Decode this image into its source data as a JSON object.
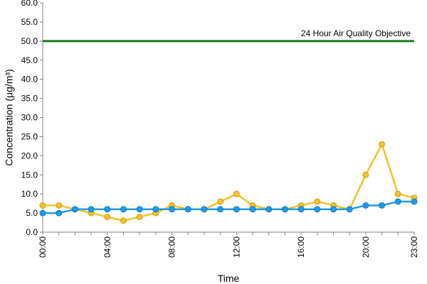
{
  "chart_data": {
    "type": "line",
    "xlabel": "Time",
    "ylabel": "Concentration (µg/m³)",
    "ylim": [
      0,
      60
    ],
    "y_ticks": [
      "0.0",
      "5.0",
      "10.0",
      "15.0",
      "20.0",
      "25.0",
      "30.0",
      "35.0",
      "40.0",
      "45.0",
      "50.0",
      "55.0",
      "60.0"
    ],
    "x_tick_labels": [
      "00:00",
      "04:00",
      "08:00",
      "12:00",
      "16:00",
      "20:00",
      "23:00"
    ],
    "x_tick_hours": [
      0,
      4,
      8,
      12,
      16,
      20,
      23
    ],
    "x_hours": [
      0,
      1,
      2,
      3,
      4,
      5,
      6,
      7,
      8,
      9,
      10,
      11,
      12,
      13,
      14,
      15,
      16,
      17,
      18,
      19,
      20,
      21,
      22,
      23
    ],
    "grid": false,
    "reference_line": {
      "value": 50,
      "label": "24 Hour Air Quality Objective",
      "color": "#1f7a1f"
    },
    "series": [
      {
        "color": "#f2c12e",
        "marker_edge": "#c9a21a",
        "values": [
          7,
          7,
          6,
          5,
          4,
          3,
          4,
          5,
          7,
          6,
          6,
          8,
          10,
          7,
          6,
          6,
          7,
          8,
          7,
          6,
          15,
          23,
          10,
          9
        ]
      },
      {
        "color": "#1e9be8",
        "marker_edge": "#1877b8",
        "values": [
          5,
          5,
          6,
          6,
          6,
          6,
          6,
          6,
          6,
          6,
          6,
          6,
          6,
          6,
          6,
          6,
          6,
          6,
          6,
          6,
          7,
          7,
          8,
          8
        ]
      }
    ]
  }
}
